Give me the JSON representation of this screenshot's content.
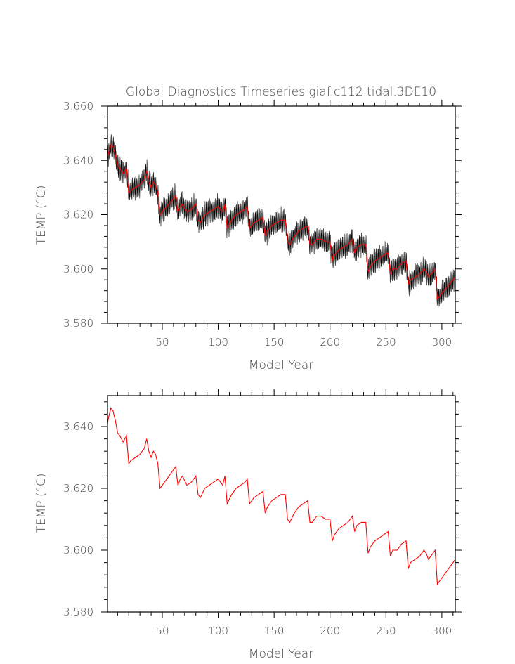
{
  "chart_data": [
    {
      "type": "line",
      "title": "Global Diagnostics Timeseries giaf.c112.tidal.3DE10",
      "xlabel": "Model Year",
      "ylabel": "TEMP (°C)",
      "xlim": [
        1,
        312
      ],
      "ylim": [
        3.58,
        3.66
      ],
      "xticks": [
        50,
        100,
        150,
        200,
        250,
        300
      ],
      "yticks": [
        3.58,
        3.6,
        3.62,
        3.64,
        3.66
      ],
      "ytick_labels": [
        "3.580",
        "3.600",
        "3.620",
        "3.640",
        "3.660"
      ],
      "grid": false,
      "series": [
        {
          "style": "monthly-band",
          "color": "#000000",
          "x": [
            1,
            2,
            4,
            6,
            8,
            10,
            12,
            15,
            18,
            20,
            22,
            26,
            30,
            34,
            36,
            38,
            40,
            42,
            44,
            46,
            48,
            52,
            56,
            60,
            62,
            64,
            66,
            68,
            72,
            76,
            80,
            82,
            84,
            88,
            92,
            96,
            100,
            104,
            106,
            108,
            112,
            116,
            120,
            124,
            126,
            128,
            132,
            136,
            140,
            142,
            144,
            148,
            152,
            156,
            160,
            162,
            164,
            168,
            172,
            176,
            180,
            182,
            184,
            188,
            192,
            196,
            200,
            202,
            204,
            208,
            212,
            216,
            220,
            222,
            224,
            228,
            232,
            234,
            236,
            240,
            244,
            248,
            252,
            254,
            256,
            260,
            264,
            268,
            270,
            272,
            276,
            280,
            284,
            286,
            288,
            292,
            294,
            296,
            300,
            304,
            308,
            312
          ],
          "y": [
            3.641,
            3.643,
            3.646,
            3.645,
            3.642,
            3.638,
            3.637,
            3.635,
            3.637,
            3.628,
            3.629,
            3.63,
            3.631,
            3.633,
            3.636,
            3.632,
            3.63,
            3.632,
            3.631,
            3.628,
            3.62,
            3.622,
            3.624,
            3.626,
            3.627,
            3.621,
            3.623,
            3.624,
            3.621,
            3.622,
            3.624,
            3.618,
            3.617,
            3.62,
            3.621,
            3.622,
            3.623,
            3.621,
            3.624,
            3.615,
            3.618,
            3.62,
            3.621,
            3.622,
            3.623,
            3.615,
            3.617,
            3.618,
            3.619,
            3.612,
            3.614,
            3.616,
            3.617,
            3.618,
            3.618,
            3.61,
            3.609,
            3.612,
            3.614,
            3.615,
            3.616,
            3.609,
            3.609,
            3.611,
            3.611,
            3.61,
            3.61,
            3.603,
            3.605,
            3.607,
            3.608,
            3.609,
            3.611,
            3.606,
            3.608,
            3.609,
            3.609,
            3.599,
            3.601,
            3.603,
            3.604,
            3.605,
            3.606,
            3.598,
            3.6,
            3.6,
            3.602,
            3.603,
            3.594,
            3.596,
            3.597,
            3.598,
            3.6,
            3.599,
            3.597,
            3.599,
            3.6,
            3.589,
            3.591,
            3.593,
            3.595,
            3.597
          ]
        },
        {
          "style": "annual-mean",
          "color": "#ff0000",
          "x": [
            1,
            2,
            4,
            6,
            8,
            10,
            12,
            15,
            18,
            20,
            22,
            26,
            30,
            34,
            36,
            38,
            40,
            42,
            44,
            46,
            48,
            52,
            56,
            60,
            62,
            64,
            66,
            68,
            72,
            76,
            80,
            82,
            84,
            88,
            92,
            96,
            100,
            104,
            106,
            108,
            112,
            116,
            120,
            124,
            126,
            128,
            132,
            136,
            140,
            142,
            144,
            148,
            152,
            156,
            160,
            162,
            164,
            168,
            172,
            176,
            180,
            182,
            184,
            188,
            192,
            196,
            200,
            202,
            204,
            208,
            212,
            216,
            220,
            222,
            224,
            228,
            232,
            234,
            236,
            240,
            244,
            248,
            252,
            254,
            256,
            260,
            264,
            268,
            270,
            272,
            276,
            280,
            284,
            286,
            288,
            292,
            294,
            296,
            300,
            304,
            308,
            312
          ],
          "y": [
            3.641,
            3.643,
            3.646,
            3.645,
            3.642,
            3.638,
            3.637,
            3.635,
            3.637,
            3.628,
            3.629,
            3.63,
            3.631,
            3.633,
            3.636,
            3.632,
            3.63,
            3.632,
            3.631,
            3.628,
            3.62,
            3.622,
            3.624,
            3.626,
            3.627,
            3.621,
            3.623,
            3.624,
            3.621,
            3.622,
            3.624,
            3.618,
            3.617,
            3.62,
            3.621,
            3.622,
            3.623,
            3.621,
            3.624,
            3.615,
            3.618,
            3.62,
            3.621,
            3.622,
            3.623,
            3.615,
            3.617,
            3.618,
            3.619,
            3.612,
            3.614,
            3.616,
            3.617,
            3.618,
            3.618,
            3.61,
            3.609,
            3.612,
            3.614,
            3.615,
            3.616,
            3.609,
            3.609,
            3.611,
            3.611,
            3.61,
            3.61,
            3.603,
            3.605,
            3.607,
            3.608,
            3.609,
            3.611,
            3.606,
            3.608,
            3.609,
            3.609,
            3.599,
            3.601,
            3.603,
            3.604,
            3.605,
            3.606,
            3.598,
            3.6,
            3.6,
            3.602,
            3.603,
            3.594,
            3.596,
            3.597,
            3.598,
            3.6,
            3.599,
            3.597,
            3.599,
            3.6,
            3.589,
            3.591,
            3.593,
            3.595,
            3.597
          ]
        }
      ]
    },
    {
      "type": "line",
      "title": "",
      "xlabel": "Model Year",
      "ylabel": "TEMP (°C)",
      "xlim": [
        1,
        312
      ],
      "ylim": [
        3.58,
        3.65
      ],
      "xticks": [
        50,
        100,
        150,
        200,
        250,
        300
      ],
      "yticks": [
        3.58,
        3.6,
        3.62,
        3.64
      ],
      "ytick_labels": [
        "3.580",
        "3.600",
        "3.620",
        "3.640"
      ],
      "grid": false,
      "series": [
        {
          "style": "annual-mean",
          "color": "#ff0000",
          "x": [
            1,
            2,
            4,
            6,
            8,
            10,
            12,
            15,
            18,
            20,
            22,
            26,
            30,
            34,
            36,
            38,
            40,
            42,
            44,
            46,
            48,
            52,
            56,
            60,
            62,
            64,
            66,
            68,
            72,
            76,
            80,
            82,
            84,
            88,
            92,
            96,
            100,
            104,
            106,
            108,
            112,
            116,
            120,
            124,
            126,
            128,
            132,
            136,
            140,
            142,
            144,
            148,
            152,
            156,
            160,
            162,
            164,
            168,
            172,
            176,
            180,
            182,
            184,
            188,
            192,
            196,
            200,
            202,
            204,
            208,
            212,
            216,
            220,
            222,
            224,
            228,
            232,
            234,
            236,
            240,
            244,
            248,
            252,
            254,
            256,
            260,
            264,
            268,
            270,
            272,
            276,
            280,
            284,
            286,
            288,
            292,
            294,
            296,
            300,
            304,
            308,
            312
          ],
          "y": [
            3.641,
            3.643,
            3.646,
            3.645,
            3.642,
            3.638,
            3.637,
            3.635,
            3.637,
            3.628,
            3.629,
            3.63,
            3.631,
            3.633,
            3.636,
            3.632,
            3.63,
            3.632,
            3.631,
            3.628,
            3.62,
            3.622,
            3.624,
            3.626,
            3.627,
            3.621,
            3.623,
            3.624,
            3.621,
            3.622,
            3.624,
            3.618,
            3.617,
            3.62,
            3.621,
            3.622,
            3.623,
            3.621,
            3.624,
            3.615,
            3.618,
            3.62,
            3.621,
            3.622,
            3.623,
            3.615,
            3.617,
            3.618,
            3.619,
            3.612,
            3.614,
            3.616,
            3.617,
            3.618,
            3.618,
            3.61,
            3.609,
            3.612,
            3.614,
            3.615,
            3.616,
            3.609,
            3.609,
            3.611,
            3.611,
            3.61,
            3.61,
            3.603,
            3.605,
            3.607,
            3.608,
            3.609,
            3.611,
            3.606,
            3.608,
            3.609,
            3.609,
            3.599,
            3.601,
            3.603,
            3.604,
            3.605,
            3.606,
            3.598,
            3.6,
            3.6,
            3.602,
            3.603,
            3.594,
            3.596,
            3.597,
            3.598,
            3.6,
            3.599,
            3.597,
            3.599,
            3.6,
            3.589,
            3.591,
            3.593,
            3.595,
            3.597
          ]
        }
      ]
    }
  ]
}
